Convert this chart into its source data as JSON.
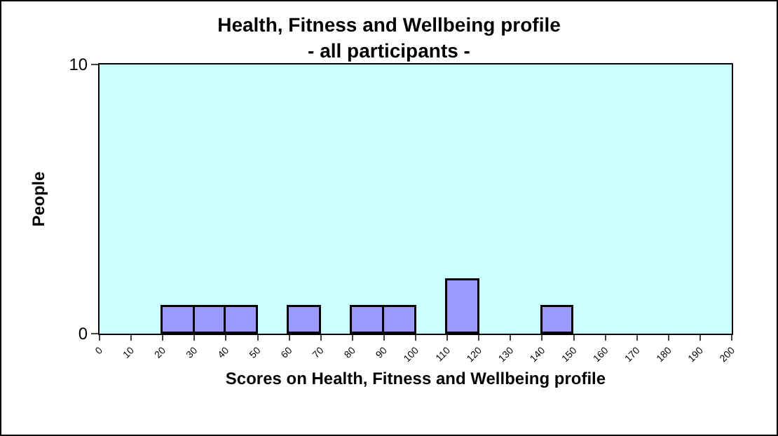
{
  "chart_data": {
    "type": "histogram",
    "title": "Health, Fitness and Wellbeing profile",
    "subtitle": "- all participants -",
    "xlabel": "Scores on Health, Fitness and Wellbeing profile",
    "ylabel": "People",
    "bins": [
      0,
      10,
      20,
      30,
      40,
      50,
      60,
      70,
      80,
      90,
      100,
      110,
      120,
      130,
      140,
      150,
      160,
      170,
      180,
      190,
      200
    ],
    "values": [
      0,
      0,
      1,
      1,
      1,
      0,
      1,
      0,
      1,
      1,
      0,
      2,
      0,
      0,
      1,
      0,
      0,
      0,
      0,
      0
    ],
    "color": "#9999ff",
    "xlim": [
      0,
      200
    ],
    "xticks": [
      0,
      10,
      20,
      30,
      40,
      50,
      60,
      70,
      80,
      90,
      100,
      110,
      120,
      130,
      140,
      150,
      160,
      170,
      180,
      190,
      200
    ],
    "ylim": [
      0,
      10
    ],
    "yticks": [
      0,
      10
    ]
  }
}
